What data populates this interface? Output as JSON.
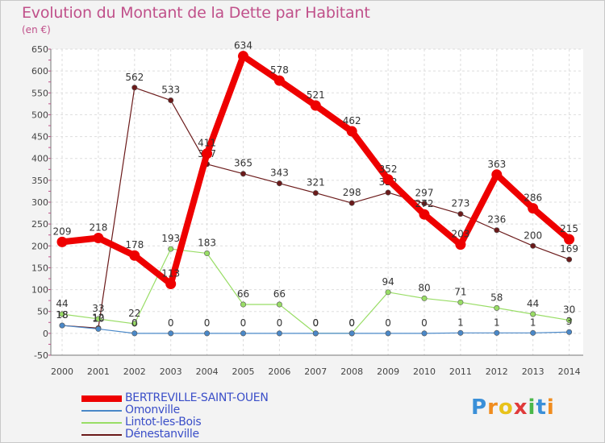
{
  "title": "Evolution du Montant de la Dette par Habitant",
  "unit": "(en €)",
  "logo_text": "Proxiti",
  "chart_data": {
    "type": "line",
    "title": "Evolution du Montant de la Dette par Habitant",
    "ylabel": "(en €)",
    "xlabel": "",
    "ylim": [
      -50,
      650
    ],
    "yticks": [
      -50,
      0,
      50,
      100,
      150,
      200,
      250,
      300,
      350,
      400,
      450,
      500,
      550,
      600,
      650
    ],
    "categories": [
      "2000",
      "2001",
      "2002",
      "2003",
      "2004",
      "2005",
      "2006",
      "2007",
      "2008",
      "2009",
      "2010",
      "2011",
      "2012",
      "2013",
      "2014"
    ],
    "grid": true,
    "series": [
      {
        "name": "Dénestanville",
        "color": "#6b1a1a",
        "values": [
          18,
          12,
          562,
          533,
          387,
          365,
          343,
          321,
          298,
          322,
          297,
          273,
          236,
          200,
          169
        ]
      },
      {
        "name": "Lintot-les-Bois",
        "color": "#99dd66",
        "values": [
          44,
          33,
          22,
          193,
          183,
          66,
          66,
          0,
          0,
          94,
          80,
          71,
          58,
          44,
          30
        ]
      },
      {
        "name": "Omonville",
        "color": "#4a88c8",
        "values": [
          18,
          10,
          0,
          0,
          0,
          0,
          0,
          0,
          0,
          0,
          0,
          1,
          1,
          1,
          3
        ]
      },
      {
        "name": "BERTREVILLE-SAINT-OUEN",
        "color": "#ee0000",
        "values": [
          209,
          218,
          178,
          113,
          411,
          634,
          578,
          521,
          462,
          352,
          272,
          203,
          363,
          286,
          215
        ]
      }
    ],
    "legend": [
      "BERTREVILLE-SAINT-OUEN",
      "Omonville",
      "Lintot-les-Bois",
      "Dénestanville"
    ]
  }
}
